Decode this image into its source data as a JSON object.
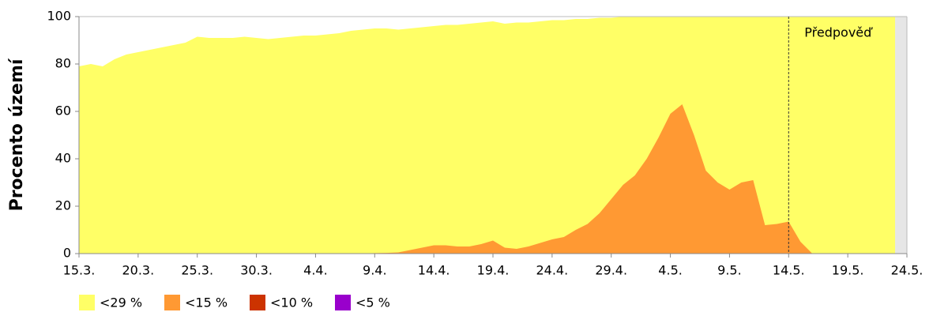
{
  "chart_data": {
    "type": "area",
    "ylabel": "Procento území",
    "categories": [
      "15.3.",
      null,
      null,
      null,
      null,
      "20.3.",
      null,
      null,
      null,
      null,
      "25.3.",
      null,
      null,
      null,
      null,
      "30.3.",
      null,
      null,
      null,
      null,
      "4.4.",
      null,
      null,
      null,
      null,
      "9.4.",
      null,
      null,
      null,
      null,
      "14.4.",
      null,
      null,
      null,
      null,
      "19.4.",
      null,
      null,
      null,
      null,
      "24.4.",
      null,
      null,
      null,
      null,
      "29.4.",
      null,
      null,
      null,
      null,
      "4.5.",
      null,
      null,
      null,
      null,
      "9.5.",
      null,
      null,
      null,
      null,
      "14.5.",
      null,
      null,
      null,
      null,
      "19.5.",
      null,
      null,
      null,
      null,
      "24.5."
    ],
    "series": [
      {
        "name": "<29 %",
        "color": "#ffff66",
        "values": [
          79,
          80,
          79,
          82,
          84,
          85,
          86,
          87,
          88,
          89,
          91.5,
          91,
          91,
          91,
          91.5,
          91,
          90.5,
          91,
          91.5,
          92,
          92,
          92.5,
          93,
          94,
          94.5,
          95,
          95,
          94.5,
          95,
          95.5,
          96,
          96.5,
          96.5,
          97,
          97.5,
          98,
          97,
          97.5,
          97.5,
          98,
          98.5,
          98.5,
          99,
          99,
          99.5,
          99.5,
          100,
          100,
          100,
          100,
          100,
          100,
          100,
          100,
          100,
          100,
          100,
          100,
          100,
          100,
          100,
          100,
          100,
          100,
          100,
          100,
          100,
          100,
          100,
          100,
          null
        ]
      },
      {
        "name": "<15 %",
        "color": "#ff9933",
        "values": [
          0,
          0,
          0,
          0,
          0,
          0,
          0,
          0,
          0,
          0,
          0,
          0,
          0,
          0,
          0,
          0,
          0,
          0,
          0,
          0,
          0,
          0,
          0,
          0,
          0,
          0.2,
          0.3,
          0.5,
          1.5,
          2.5,
          3.5,
          3.5,
          3,
          3,
          4,
          5.5,
          2.5,
          2,
          3,
          4.5,
          6,
          7,
          10,
          12.5,
          17,
          23,
          29,
          33,
          40,
          49,
          59,
          63,
          50,
          35,
          30,
          27,
          30,
          31,
          12,
          12.5,
          13.5,
          5,
          0,
          0,
          0,
          0,
          0,
          0,
          0,
          0,
          null
        ]
      },
      {
        "name": "<10 %",
        "color": "#cc3300",
        "values": [
          0,
          0,
          0,
          0,
          0,
          0,
          0,
          0,
          0,
          0,
          0,
          0,
          0,
          0,
          0,
          0,
          0,
          0,
          0,
          0,
          0,
          0,
          0,
          0,
          0,
          0,
          0,
          0,
          0,
          0,
          0,
          0,
          0,
          0,
          0,
          0,
          0,
          0,
          0,
          0,
          0,
          0,
          0,
          0,
          0,
          0,
          0,
          0,
          0,
          0,
          0,
          0,
          0,
          0,
          0,
          0,
          0,
          0,
          0,
          0,
          0,
          0,
          0,
          0,
          0,
          0,
          0,
          0,
          0,
          0,
          null
        ]
      },
      {
        "name": "<5 %",
        "color": "#9900cc",
        "values": [
          0,
          0,
          0,
          0,
          0,
          0,
          0,
          0,
          0,
          0,
          0,
          0,
          0,
          0,
          0,
          0,
          0,
          0,
          0,
          0,
          0,
          0,
          0,
          0,
          0,
          0,
          0,
          0,
          0,
          0,
          0,
          0,
          0,
          0,
          0,
          0,
          0,
          0,
          0,
          0,
          0,
          0,
          0,
          0,
          0,
          0,
          0,
          0,
          0,
          0,
          0,
          0,
          0,
          0,
          0,
          0,
          0,
          0,
          0,
          0,
          0,
          0,
          0,
          0,
          0,
          0,
          0,
          0,
          0,
          0,
          null
        ]
      }
    ],
    "ylim": [
      0,
      100
    ],
    "yticks": [
      0,
      20,
      40,
      60,
      80,
      100
    ],
    "annotation": {
      "text": "Předpověď",
      "x": "14.5."
    }
  }
}
